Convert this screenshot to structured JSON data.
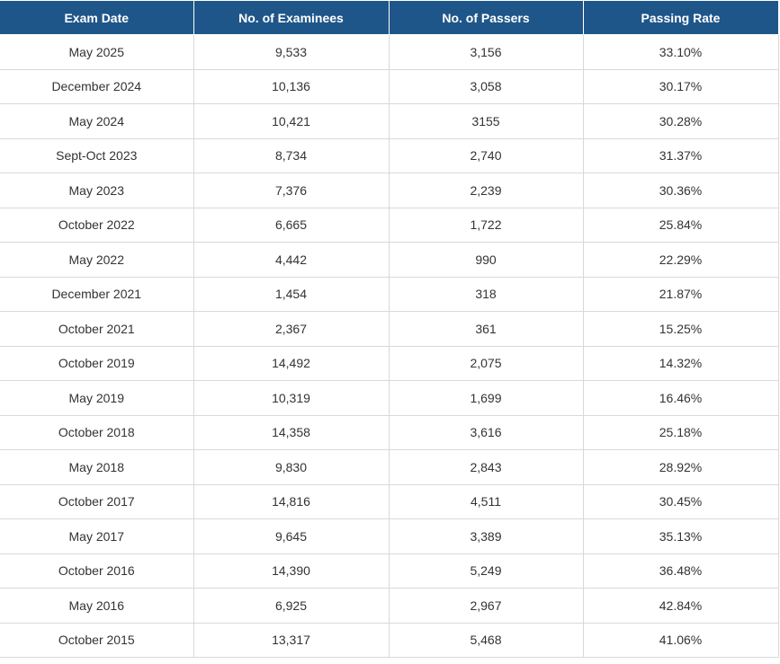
{
  "table": {
    "headers": [
      "Exam Date",
      "No. of Examinees",
      "No. of Passers",
      "Passing Rate"
    ],
    "rows": [
      [
        "May 2025",
        "9,533",
        "3,156",
        "33.10%"
      ],
      [
        "December 2024",
        "10,136",
        "3,058",
        "30.17%"
      ],
      [
        "May 2024",
        "10,421",
        "3155",
        "30.28%"
      ],
      [
        "Sept-Oct 2023",
        "8,734",
        "2,740",
        "31.37%"
      ],
      [
        "May 2023",
        "7,376",
        "2,239",
        "30.36%"
      ],
      [
        "October 2022",
        "6,665",
        "1,722",
        "25.84%"
      ],
      [
        "May 2022",
        "4,442",
        "990",
        "22.29%"
      ],
      [
        "December 2021",
        "1,454",
        "318",
        "21.87%"
      ],
      [
        "October 2021",
        "2,367",
        "361",
        "15.25%"
      ],
      [
        "October 2019",
        "14,492",
        "2,075",
        "14.32%"
      ],
      [
        "May 2019",
        "10,319",
        "1,699",
        "16.46%"
      ],
      [
        "October 2018",
        "14,358",
        "3,616",
        "25.18%"
      ],
      [
        "May 2018",
        "9,830",
        "2,843",
        "28.92%"
      ],
      [
        "October 2017",
        "14,816",
        "4,511",
        "30.45%"
      ],
      [
        "May 2017",
        "9,645",
        "3,389",
        "35.13%"
      ],
      [
        "October 2016",
        "14,390",
        "5,249",
        "36.48%"
      ],
      [
        "May 2016",
        "6,925",
        "2,967",
        "42.84%"
      ],
      [
        "October 2015",
        "13,317",
        "5,468",
        "41.06%"
      ]
    ]
  },
  "colors": {
    "header_bg": "#1f5689",
    "header_text": "#ffffff",
    "cell_text": "#333333",
    "grid": "#d9d9d9"
  }
}
